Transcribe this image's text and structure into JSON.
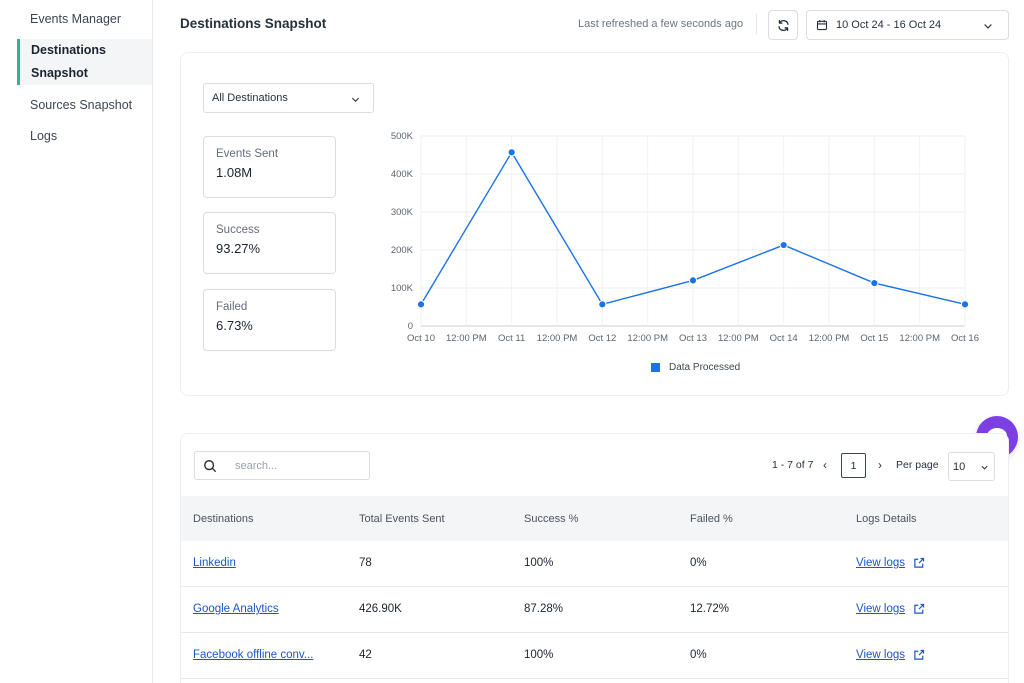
{
  "sidebar": {
    "items": [
      {
        "label": "Events Manager"
      },
      {
        "label": "Destinations Snapshot"
      },
      {
        "label": "Sources Snapshot"
      },
      {
        "label": "Logs"
      }
    ]
  },
  "header": {
    "title": "Destinations Snapshot",
    "refreshed": "Last refreshed a few seconds ago",
    "date_range": "10 Oct 24 - 16 Oct 24"
  },
  "filter": {
    "destination": "All Destinations"
  },
  "stats": [
    {
      "label": "Events Sent",
      "value": "1.08M"
    },
    {
      "label": "Success",
      "value": "93.27%"
    },
    {
      "label": "Failed",
      "value": "6.73%"
    }
  ],
  "chart_data": {
    "type": "line",
    "x_labels": [
      "Oct 10",
      "12:00 PM",
      "Oct 11",
      "12:00 PM",
      "Oct 12",
      "12:00 PM",
      "Oct 13",
      "12:00 PM",
      "Oct 14",
      "12:00 PM",
      "Oct 15",
      "12:00 PM",
      "Oct 16"
    ],
    "y_ticks": [
      "0",
      "100K",
      "200K",
      "300K",
      "400K",
      "500K"
    ],
    "ylim": [
      0,
      500000
    ],
    "series": [
      {
        "name": "Data Processed",
        "color": "#1a73e8",
        "x": [
          "Oct 10",
          "Oct 11",
          "Oct 12",
          "Oct 13",
          "Oct 14",
          "Oct 15",
          "Oct 16"
        ],
        "values": [
          57000,
          457000,
          57000,
          120000,
          213000,
          113000,
          57000
        ]
      }
    ],
    "grid": true,
    "legend": "bottom-center"
  },
  "table": {
    "search_placeholder": "search...",
    "pagination": {
      "range": "1 - 7 of 7",
      "current_page": "1",
      "per_page_label": "Per page",
      "per_page": "10"
    },
    "columns": [
      "Destinations",
      "Total Events Sent",
      "Success %",
      "Failed %",
      "Logs Details"
    ],
    "rows": [
      {
        "destination": "Linkedin",
        "total": "78",
        "success": "100%",
        "failed": "0%",
        "logs": "View logs"
      },
      {
        "destination": "Google Analytics",
        "total": "426.90K",
        "success": "87.28%",
        "failed": "12.72%",
        "logs": "View logs"
      },
      {
        "destination": "Facebook offline conv...",
        "total": "42",
        "success": "100%",
        "failed": "0%",
        "logs": "View logs"
      }
    ]
  },
  "colors": {
    "accent": "#2fb596",
    "link": "#1a56c8",
    "chart_line": "#1a73e8",
    "chat": "#7b3fe4"
  }
}
